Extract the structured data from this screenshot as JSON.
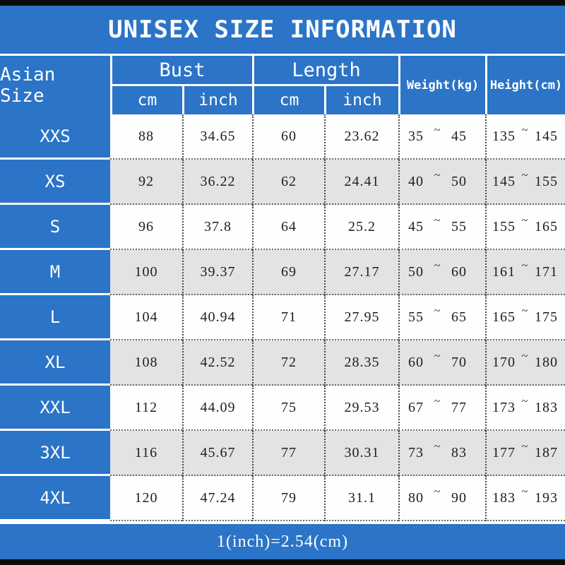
{
  "header": {
    "title": "UNISEX SIZE INFORMATION"
  },
  "table": {
    "corner_label": "Asian Size",
    "group_headers": [
      {
        "label": "Bust",
        "sub": [
          "cm",
          "inch"
        ]
      },
      {
        "label": "Length",
        "sub": [
          "cm",
          "inch"
        ]
      }
    ],
    "span_headers": [
      "Weight(kg)",
      "Height(cm)"
    ],
    "tilde": "~",
    "rows": [
      {
        "size": "XXS",
        "bust_cm": "88",
        "bust_inch": "34.65",
        "length_cm": "60",
        "length_inch": "23.62",
        "weight_min": "35",
        "weight_max": "45",
        "height_min": "135",
        "height_max": "145"
      },
      {
        "size": "XS",
        "bust_cm": "92",
        "bust_inch": "36.22",
        "length_cm": "62",
        "length_inch": "24.41",
        "weight_min": "40",
        "weight_max": "50",
        "height_min": "145",
        "height_max": "155"
      },
      {
        "size": "S",
        "bust_cm": "96",
        "bust_inch": "37.8",
        "length_cm": "64",
        "length_inch": "25.2",
        "weight_min": "45",
        "weight_max": "55",
        "height_min": "155",
        "height_max": "165"
      },
      {
        "size": "M",
        "bust_cm": "100",
        "bust_inch": "39.37",
        "length_cm": "69",
        "length_inch": "27.17",
        "weight_min": "50",
        "weight_max": "60",
        "height_min": "161",
        "height_max": "171"
      },
      {
        "size": "L",
        "bust_cm": "104",
        "bust_inch": "40.94",
        "length_cm": "71",
        "length_inch": "27.95",
        "weight_min": "55",
        "weight_max": "65",
        "height_min": "165",
        "height_max": "175"
      },
      {
        "size": "XL",
        "bust_cm": "108",
        "bust_inch": "42.52",
        "length_cm": "72",
        "length_inch": "28.35",
        "weight_min": "60",
        "weight_max": "70",
        "height_min": "170",
        "height_max": "180"
      },
      {
        "size": "XXL",
        "bust_cm": "112",
        "bust_inch": "44.09",
        "length_cm": "75",
        "length_inch": "29.53",
        "weight_min": "67",
        "weight_max": "77",
        "height_min": "173",
        "height_max": "183"
      },
      {
        "size": "3XL",
        "bust_cm": "116",
        "bust_inch": "45.67",
        "length_cm": "77",
        "length_inch": "30.31",
        "weight_min": "73",
        "weight_max": "83",
        "height_min": "177",
        "height_max": "187"
      },
      {
        "size": "4XL",
        "bust_cm": "120",
        "bust_inch": "47.24",
        "length_cm": "79",
        "length_inch": "31.1",
        "weight_min": "80",
        "weight_max": "90",
        "height_min": "183",
        "height_max": "193"
      }
    ]
  },
  "footer": {
    "note": "1(inch)=2.54(cm)"
  },
  "colors": {
    "accent_blue": "#2b74c7",
    "row_alt_gray": "#e4e2e3",
    "row_white": "#fefefe",
    "bar_black": "#0b0b0b",
    "text_white": "#ffffff",
    "text_dark": "#1e1e1e"
  },
  "chart_data": {
    "type": "table",
    "title": "UNISEX SIZE INFORMATION",
    "columns": [
      "Asian Size",
      "Bust cm",
      "Bust inch",
      "Length cm",
      "Length inch",
      "Weight(kg)",
      "Height(cm)"
    ],
    "rows": [
      [
        "XXS",
        88,
        34.65,
        60,
        23.62,
        "35 ~ 45",
        "135 ~ 145"
      ],
      [
        "XS",
        92,
        36.22,
        62,
        24.41,
        "40 ~ 50",
        "145 ~ 155"
      ],
      [
        "S",
        96,
        37.8,
        64,
        25.2,
        "45 ~ 55",
        "155 ~ 165"
      ],
      [
        "M",
        100,
        39.37,
        69,
        27.17,
        "50 ~ 60",
        "161 ~ 171"
      ],
      [
        "L",
        104,
        40.94,
        71,
        27.95,
        "55 ~ 65",
        "165 ~ 175"
      ],
      [
        "XL",
        108,
        42.52,
        72,
        28.35,
        "60 ~ 70",
        "170 ~ 180"
      ],
      [
        "XXL",
        112,
        44.09,
        75,
        29.53,
        "67 ~ 77",
        "173 ~ 183"
      ],
      [
        "3XL",
        116,
        45.67,
        77,
        30.31,
        "73 ~ 83",
        "177 ~ 187"
      ],
      [
        "4XL",
        120,
        47.24,
        79,
        31.1,
        "80 ~ 90",
        "183 ~ 193"
      ]
    ],
    "footnote": "1(inch)=2.54(cm)"
  }
}
